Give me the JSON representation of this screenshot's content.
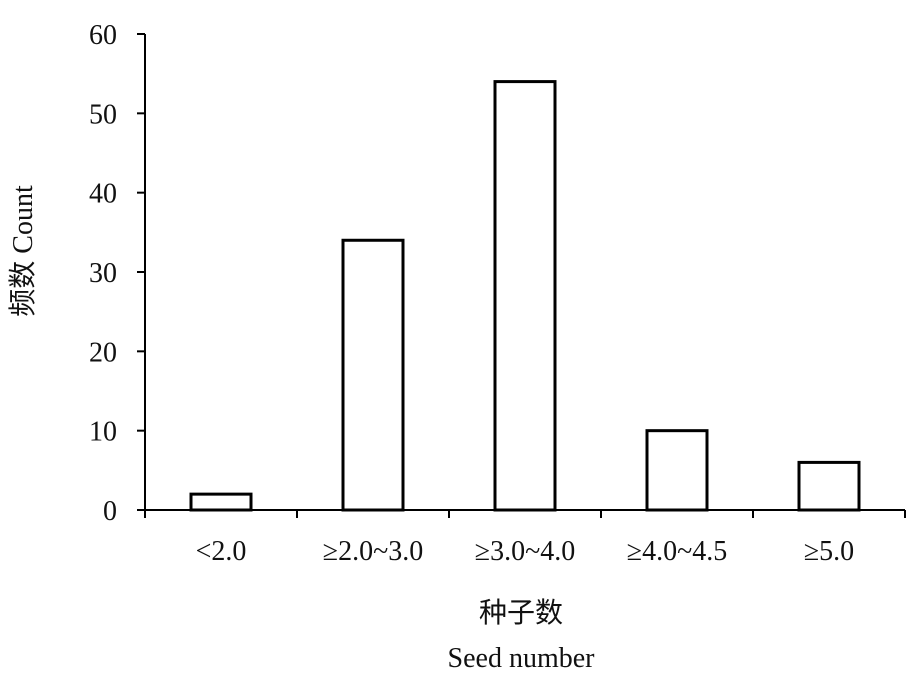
{
  "chart_data": {
    "type": "bar",
    "title": "",
    "categories": [
      "<2.0",
      "≥2.0~3.0",
      "≥3.0~4.0",
      "≥4.0~4.5",
      "≥5.0"
    ],
    "series": [
      {
        "values": [
          2,
          34,
          54,
          10,
          6
        ]
      }
    ],
    "xlabel_cn": "种子数",
    "xlabel_en": "Seed number",
    "ylabel": "频数 Count",
    "ylim": [
      0,
      60
    ],
    "yticks": [
      "0",
      "10",
      "20",
      "30",
      "40",
      "50",
      "60"
    ],
    "ytick_values": [
      0,
      10,
      20,
      30,
      40,
      50,
      60
    ],
    "grid": false,
    "legend": "none",
    "bar_fill": "#ffffff",
    "bar_stroke": "#000000"
  }
}
